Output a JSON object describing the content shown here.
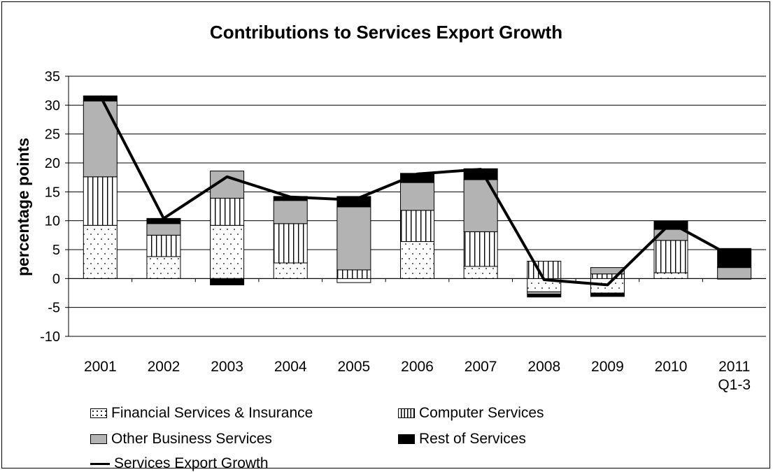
{
  "chart_data": {
    "type": "bar",
    "title": "Contributions to Services Export Growth",
    "ylabel": "percentage points",
    "xlabel": "",
    "ylim": [
      -10,
      35
    ],
    "yticks": [
      -10,
      -5,
      0,
      5,
      10,
      15,
      20,
      25,
      30,
      35
    ],
    "grid": true,
    "legend_position": "bottom",
    "categories": [
      "2001",
      "2002",
      "2003",
      "2004",
      "2005",
      "2006",
      "2007",
      "2008",
      "2009",
      "2010",
      "2011\nQ1-3"
    ],
    "series": [
      {
        "name": "Financial Services & Insurance",
        "kind": "bar",
        "pattern": "dots",
        "values": [
          9.2,
          3.8,
          9.2,
          2.7,
          -0.7,
          6.4,
          2.1,
          -2.3,
          -2.5,
          1.0,
          -0.1
        ]
      },
      {
        "name": "Computer Services",
        "kind": "bar",
        "pattern": "vertical-stripes",
        "values": [
          8.4,
          3.7,
          4.7,
          6.8,
          1.5,
          5.4,
          6.0,
          3.0,
          0.8,
          5.6,
          0.0
        ]
      },
      {
        "name": "Other Business Services",
        "kind": "bar",
        "pattern": "solid-gray",
        "values": [
          13.1,
          2.0,
          4.7,
          4.0,
          10.9,
          4.8,
          9.0,
          -0.4,
          1.1,
          1.9,
          1.9
        ]
      },
      {
        "name": "Rest of Services",
        "kind": "bar",
        "pattern": "solid-black",
        "values": [
          0.9,
          0.9,
          -1.1,
          0.7,
          1.8,
          1.6,
          1.9,
          -0.5,
          -0.6,
          1.4,
          3.3
        ]
      },
      {
        "name": "Services Export Growth",
        "kind": "line",
        "values": [
          31.6,
          10.4,
          17.6,
          14.1,
          13.6,
          18.1,
          18.9,
          -0.2,
          -1.1,
          9.6,
          3.6
        ]
      }
    ],
    "colors": {
      "gray_fill": "#b3b3b3",
      "black_fill": "#000000",
      "line": "#000000",
      "grid": "#000000"
    }
  }
}
